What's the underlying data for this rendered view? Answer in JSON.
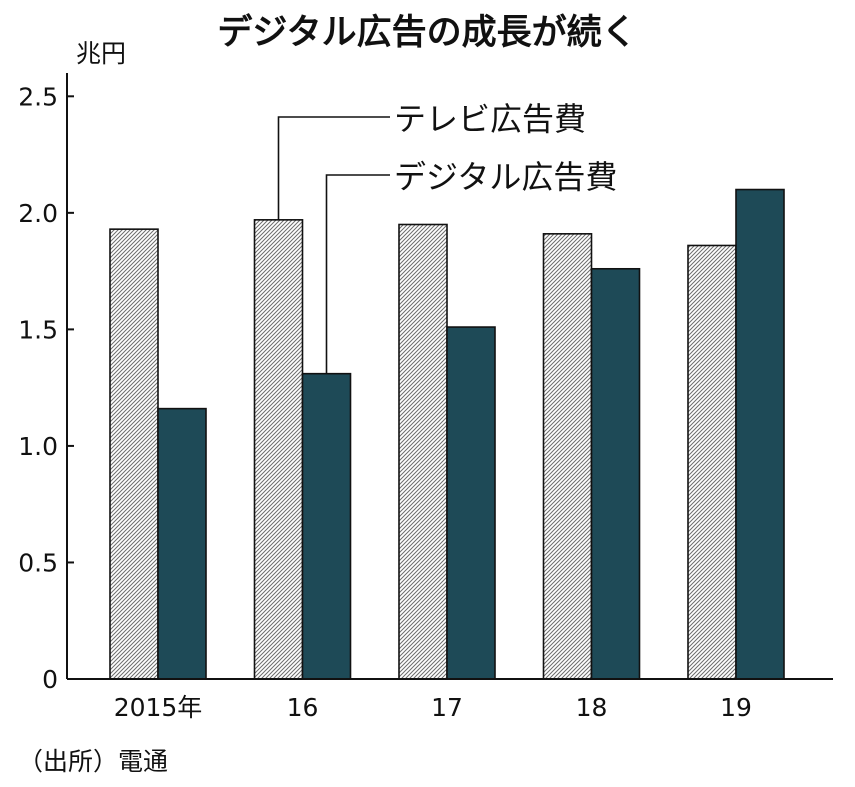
{
  "chart_data": {
    "type": "bar",
    "title": "デジタル広告の成長が続く",
    "ylabel": "兆円",
    "xlabel": "",
    "categories": [
      "2015年",
      "16",
      "17",
      "18",
      "19"
    ],
    "series": [
      {
        "name": "テレビ広告費",
        "values": [
          1.93,
          1.97,
          1.95,
          1.91,
          1.86
        ],
        "pattern": "hatched",
        "color": "#ffffff"
      },
      {
        "name": "デジタル広告費",
        "values": [
          1.16,
          1.31,
          1.51,
          1.76,
          2.1
        ],
        "pattern": "solid",
        "color": "#1e4a57"
      }
    ],
    "ylim": [
      0,
      2.6
    ],
    "yticks": [
      0,
      0.5,
      1.0,
      1.5,
      2.0,
      2.5
    ],
    "ytick_labels": [
      "0",
      "0.5",
      "1.0",
      "1.5",
      "2.0",
      "2.5"
    ],
    "grid": false,
    "source": "（出所）電通"
  }
}
